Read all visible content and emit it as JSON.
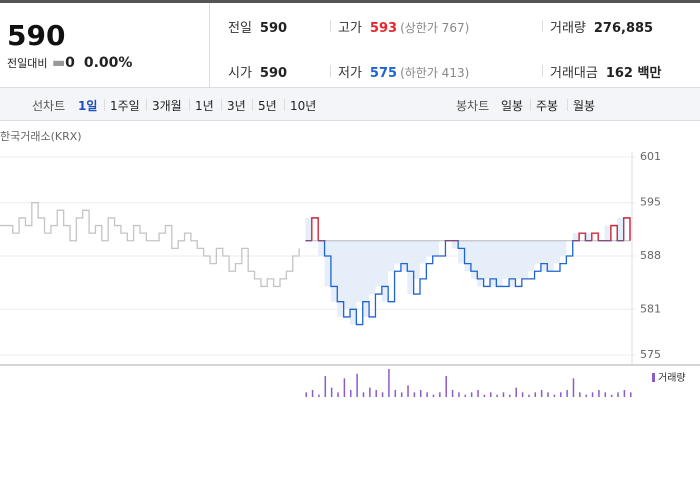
{
  "quote": {
    "price": "590",
    "change_label": "전일대비",
    "change": "0",
    "change_rate": "0.00%"
  },
  "stats": [
    {
      "label": "전일",
      "value": "590",
      "color": "#222"
    },
    {
      "label": "고가",
      "value": "593",
      "note": "(상한가 767)",
      "color": "#e8262c"
    },
    {
      "label": "거래량",
      "value": "276,885",
      "color": "#222"
    },
    {
      "label": "시가",
      "value": "590",
      "color": "#222"
    },
    {
      "label": "저가",
      "value": "575",
      "note": "(하한가 413)",
      "color": "#1e64d2"
    },
    {
      "label": "거래대금",
      "value": "162 백만",
      "color": "#222"
    }
  ],
  "tabs": {
    "line_label": "선차트",
    "periods": [
      "1일",
      "1주일",
      "3개월",
      "1년",
      "3년",
      "5년",
      "10년"
    ],
    "candle_label": "봉차트",
    "candles": [
      "일봉",
      "주봉",
      "월봉"
    ]
  },
  "chart_data": {
    "type": "line",
    "source": "한국거래소(KRX)",
    "ylim": [
      575,
      601
    ],
    "yticks": [
      601,
      595,
      588,
      581,
      575
    ],
    "baseline": 590,
    "series": [
      {
        "color": "#c4c4c4",
        "values": [
          592,
          592,
          591,
          593,
          592,
          595,
          593,
          591,
          592,
          594,
          592,
          590,
          593,
          594,
          591,
          592,
          590,
          593,
          592,
          591,
          590,
          592,
          591,
          590,
          590,
          591,
          592,
          589,
          590,
          591,
          590,
          589,
          588,
          587,
          589,
          588,
          586,
          587,
          589,
          586,
          585,
          584,
          585,
          584,
          585,
          586,
          588,
          589
        ]
      },
      {
        "color": "#1e64d2",
        "up_color": "#e8262c",
        "fill": "#e6eefa",
        "values": [
          590,
          593,
          590,
          588,
          584,
          582,
          580,
          581,
          579,
          582,
          580,
          583,
          584,
          582,
          586,
          587,
          586,
          583,
          585,
          587,
          588,
          588,
          590,
          590,
          589,
          587,
          586,
          585,
          584,
          585,
          584,
          584,
          585,
          584,
          585,
          585,
          586,
          587,
          586,
          586,
          587,
          588,
          590,
          591,
          590,
          591,
          590,
          590,
          592,
          590,
          593,
          590
        ]
      }
    ],
    "volume": {
      "name": "거래량",
      "color": "#8a5cc9",
      "values": [
        2,
        3,
        1,
        9,
        4,
        2,
        8,
        3,
        10,
        2,
        4,
        3,
        2,
        12,
        3,
        2,
        5,
        2,
        3,
        2,
        1,
        2,
        9,
        3,
        2,
        1,
        2,
        3,
        1,
        2,
        1,
        2,
        1,
        4,
        2,
        1,
        2,
        3,
        2,
        1,
        2,
        3,
        8,
        2,
        1,
        2,
        3,
        2,
        1,
        2,
        3,
        2
      ]
    }
  }
}
